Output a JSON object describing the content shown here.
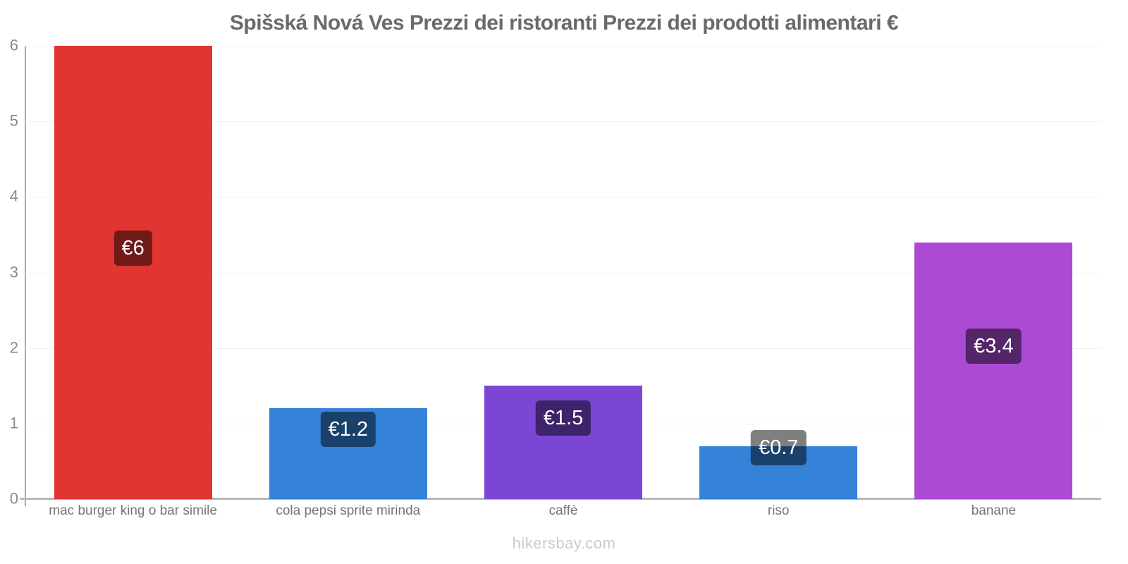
{
  "page": {
    "title": "Spišská Nová Ves Prezzi dei ristoranti Prezzi dei prodotti alimentari €",
    "watermark": "hikersbay.com"
  },
  "chart_data": {
    "type": "bar",
    "title": "Spišská Nová Ves Prezzi dei ristoranti Prezzi dei prodotti alimentari €",
    "categories": [
      "mac burger king o bar simile",
      "cola pepsi sprite mirinda",
      "caffè",
      "riso",
      "banane"
    ],
    "values": [
      6,
      1.2,
      1.5,
      0.7,
      3.4
    ],
    "value_labels": [
      "€6",
      "€1.2",
      "€1.5",
      "€0.7",
      "€3.4"
    ],
    "bar_colors": [
      "#e03531",
      "#3582d9",
      "#7b46d3",
      "#3582d9",
      "#ab4bd3"
    ],
    "currency": "€",
    "xlabel": "",
    "ylabel": "",
    "ylim": [
      0,
      6
    ],
    "yticks": [
      0,
      1,
      2,
      3,
      4,
      5,
      6
    ],
    "grid": "faint horizontal gridlines at integer ticks",
    "legend": "none",
    "watermark": "hikersbay.com",
    "colors": {
      "title_text": "#6a6a6a",
      "tick_text": "#8a8a8a",
      "category_text": "#757575",
      "axis_line": "#ababab",
      "baseline": "#b8b8b8",
      "gridline": "#f2f2f2",
      "value_badge_background": "rgba(0,0,0,0.5)",
      "value_badge_text": "#ffffff",
      "watermark_text": "#c9c9d1",
      "background": "#ffffff"
    }
  }
}
